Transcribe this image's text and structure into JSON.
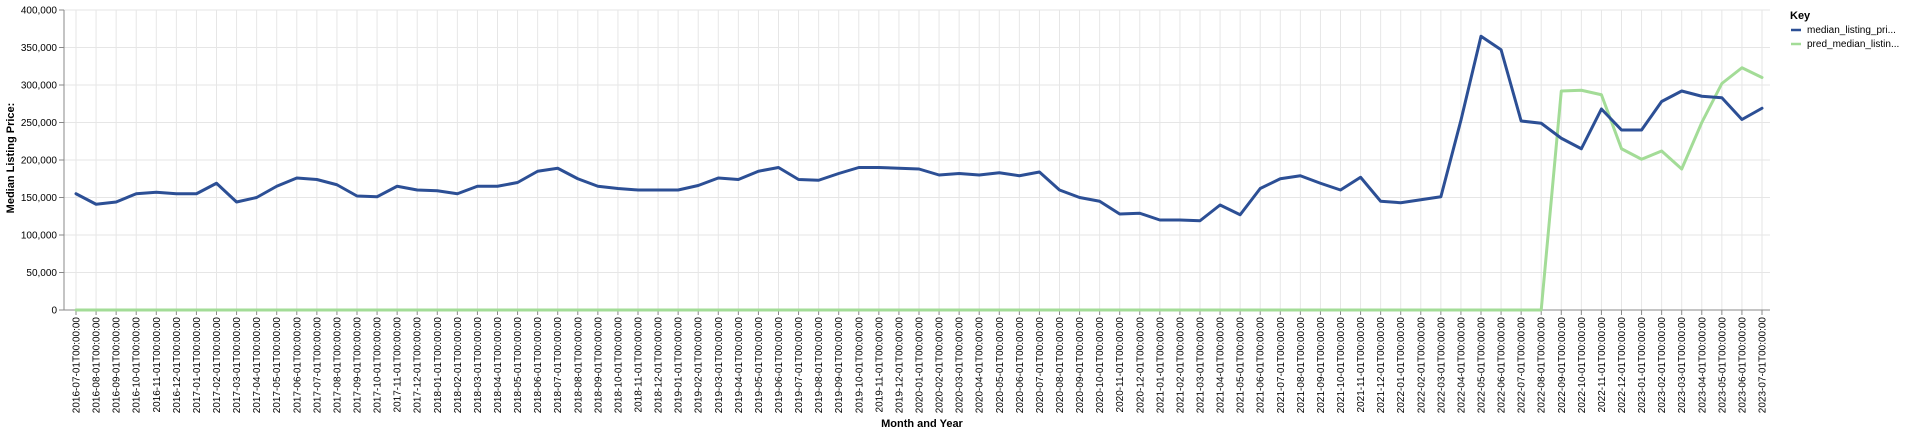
{
  "chart_data": {
    "type": "line",
    "xlabel": "Month and Year",
    "ylabel": "Median Listing Price:",
    "ylim": [
      0,
      400000
    ],
    "yticks": [
      0,
      50000,
      100000,
      150000,
      200000,
      250000,
      300000,
      350000,
      400000
    ],
    "ytick_labels": [
      "0",
      "50,000",
      "100,000",
      "150,000",
      "200,000",
      "250,000",
      "300,000",
      "350,000",
      "400,000"
    ],
    "grid": true,
    "legend": {
      "title": "Key",
      "placement": "top-right"
    },
    "colors": {
      "median_listing_price": "#2c4f95",
      "pred_median_listing_price": "#a3dc97",
      "grid": "#e6e6e6",
      "axis": "#888888"
    },
    "categories": [
      "2016-07-01T00:00:00",
      "2016-08-01T00:00:00",
      "2016-09-01T00:00:00",
      "2016-10-01T00:00:00",
      "2016-11-01T00:00:00",
      "2016-12-01T00:00:00",
      "2017-01-01T00:00:00",
      "2017-02-01T00:00:00",
      "2017-03-01T00:00:00",
      "2017-04-01T00:00:00",
      "2017-05-01T00:00:00",
      "2017-06-01T00:00:00",
      "2017-07-01T00:00:00",
      "2017-08-01T00:00:00",
      "2017-09-01T00:00:00",
      "2017-10-01T00:00:00",
      "2017-11-01T00:00:00",
      "2017-12-01T00:00:00",
      "2018-01-01T00:00:00",
      "2018-02-01T00:00:00",
      "2018-03-01T00:00:00",
      "2018-04-01T00:00:00",
      "2018-05-01T00:00:00",
      "2018-06-01T00:00:00",
      "2018-07-01T00:00:00",
      "2018-08-01T00:00:00",
      "2018-09-01T00:00:00",
      "2018-10-01T00:00:00",
      "2018-11-01T00:00:00",
      "2018-12-01T00:00:00",
      "2019-01-01T00:00:00",
      "2019-02-01T00:00:00",
      "2019-03-01T00:00:00",
      "2019-04-01T00:00:00",
      "2019-05-01T00:00:00",
      "2019-06-01T00:00:00",
      "2019-07-01T00:00:00",
      "2019-08-01T00:00:00",
      "2019-09-01T00:00:00",
      "2019-10-01T00:00:00",
      "2019-11-01T00:00:00",
      "2019-12-01T00:00:00",
      "2020-01-01T00:00:00",
      "2020-02-01T00:00:00",
      "2020-03-01T00:00:00",
      "2020-04-01T00:00:00",
      "2020-05-01T00:00:00",
      "2020-06-01T00:00:00",
      "2020-07-01T00:00:00",
      "2020-08-01T00:00:00",
      "2020-09-01T00:00:00",
      "2020-10-01T00:00:00",
      "2020-11-01T00:00:00",
      "2020-12-01T00:00:00",
      "2021-01-01T00:00:00",
      "2021-02-01T00:00:00",
      "2021-03-01T00:00:00",
      "2021-04-01T00:00:00",
      "2021-05-01T00:00:00",
      "2021-06-01T00:00:00",
      "2021-07-01T00:00:00",
      "2021-08-01T00:00:00",
      "2021-09-01T00:00:00",
      "2021-10-01T00:00:00",
      "2021-11-01T00:00:00",
      "2021-12-01T00:00:00",
      "2022-01-01T00:00:00",
      "2022-02-01T00:00:00",
      "2022-03-01T00:00:00",
      "2022-04-01T00:00:00",
      "2022-05-01T00:00:00",
      "2022-06-01T00:00:00",
      "2022-07-01T00:00:00",
      "2022-08-01T00:00:00",
      "2022-09-01T00:00:00",
      "2022-10-01T00:00:00",
      "2022-11-01T00:00:00",
      "2022-12-01T00:00:00",
      "2023-01-01T00:00:00",
      "2023-02-01T00:00:00",
      "2023-03-01T00:00:00",
      "2023-04-01T00:00:00",
      "2023-05-01T00:00:00",
      "2023-06-01T00:00:00",
      "2023-07-01T00:00:00"
    ],
    "series": [
      {
        "name": "median_listing_pri...",
        "values": [
          155000,
          141000,
          144000,
          155000,
          157000,
          155000,
          155000,
          169000,
          144000,
          150000,
          165000,
          176000,
          174000,
          167000,
          152000,
          151000,
          165000,
          160000,
          159000,
          155000,
          165000,
          165000,
          170000,
          185000,
          189000,
          175000,
          165000,
          162000,
          160000,
          160000,
          160000,
          166000,
          176000,
          174000,
          185000,
          190000,
          174000,
          173000,
          182000,
          190000,
          190000,
          189000,
          188000,
          180000,
          182000,
          180000,
          183000,
          179000,
          184000,
          160000,
          150000,
          145000,
          128000,
          129000,
          120000,
          120000,
          119000,
          140000,
          127000,
          162000,
          175000,
          179000,
          169000,
          160000,
          177000,
          145000,
          143000,
          147000,
          151000,
          253000,
          365000,
          347000,
          252000,
          249000,
          229000,
          215000,
          268000,
          240000,
          240000,
          278000,
          292000,
          285000,
          283000,
          254000,
          269000
        ]
      },
      {
        "name": "pred_median_listin...",
        "values": [
          0,
          0,
          0,
          0,
          0,
          0,
          0,
          0,
          0,
          0,
          0,
          0,
          0,
          0,
          0,
          0,
          0,
          0,
          0,
          0,
          0,
          0,
          0,
          0,
          0,
          0,
          0,
          0,
          0,
          0,
          0,
          0,
          0,
          0,
          0,
          0,
          0,
          0,
          0,
          0,
          0,
          0,
          0,
          0,
          0,
          0,
          0,
          0,
          0,
          0,
          0,
          0,
          0,
          0,
          0,
          0,
          0,
          0,
          0,
          0,
          0,
          0,
          0,
          0,
          0,
          0,
          0,
          0,
          0,
          0,
          0,
          0,
          0,
          0,
          292000,
          293000,
          287000,
          215000,
          201000,
          212000,
          188000,
          250000,
          302000,
          323000,
          310000
        ]
      }
    ]
  }
}
